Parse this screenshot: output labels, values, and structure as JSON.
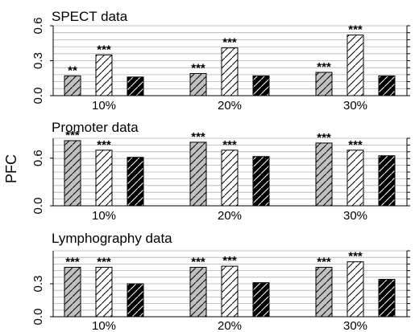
{
  "ylabel": "PFC",
  "chart_data": [
    {
      "type": "bar",
      "title": "SPECT data",
      "categories": [
        "10%",
        "20%",
        "30%"
      ],
      "ylim": [
        0,
        0.6
      ],
      "yticks": [
        "0.0",
        "0.3",
        "0.6"
      ],
      "grid": true,
      "series": [
        {
          "values": [
            0.17,
            0.19,
            0.2
          ],
          "fill": "#c0c0c0",
          "hatch": true,
          "hatch_color": "#000000",
          "stars": [
            "**",
            "***",
            "***"
          ]
        },
        {
          "values": [
            0.35,
            0.41,
            0.52
          ],
          "fill": "#ffffff",
          "hatch": true,
          "hatch_color": "#000000",
          "stars": [
            "***",
            "***",
            "***"
          ]
        },
        {
          "values": [
            0.16,
            0.17,
            0.17
          ],
          "fill": "#000000",
          "hatch": true,
          "hatch_color": "#ffffff",
          "stars": [
            "",
            "",
            ""
          ]
        }
      ]
    },
    {
      "type": "bar",
      "title": "Promoter data",
      "categories": [
        "10%",
        "20%",
        "30%"
      ],
      "ylim": [
        0,
        0.85
      ],
      "yticks": [
        "0.0",
        "0.6"
      ],
      "grid": true,
      "series": [
        {
          "values": [
            0.82,
            0.8,
            0.79
          ],
          "fill": "#c0c0c0",
          "hatch": true,
          "hatch_color": "#000000",
          "stars": [
            "***",
            "***",
            "***"
          ]
        },
        {
          "values": [
            0.7,
            0.7,
            0.7
          ],
          "fill": "#ffffff",
          "hatch": true,
          "hatch_color": "#000000",
          "stars": [
            "***",
            "***",
            "***"
          ]
        },
        {
          "values": [
            0.61,
            0.62,
            0.63
          ],
          "fill": "#000000",
          "hatch": true,
          "hatch_color": "#ffffff",
          "stars": [
            "",
            "",
            ""
          ]
        }
      ]
    },
    {
      "type": "bar",
      "title": "Lymphography data",
      "categories": [
        "10%",
        "20%",
        "30%"
      ],
      "ylim": [
        0,
        0.6
      ],
      "yticks": [
        "0.0",
        "0.3"
      ],
      "grid": true,
      "series": [
        {
          "values": [
            0.45,
            0.45,
            0.45
          ],
          "fill": "#c0c0c0",
          "hatch": true,
          "hatch_color": "#000000",
          "stars": [
            "***",
            "***",
            "***"
          ]
        },
        {
          "values": [
            0.45,
            0.46,
            0.5
          ],
          "fill": "#ffffff",
          "hatch": true,
          "hatch_color": "#000000",
          "stars": [
            "***",
            "***",
            "***"
          ]
        },
        {
          "values": [
            0.3,
            0.31,
            0.34
          ],
          "fill": "#000000",
          "hatch": true,
          "hatch_color": "#ffffff",
          "stars": [
            "",
            "",
            ""
          ]
        }
      ]
    }
  ]
}
